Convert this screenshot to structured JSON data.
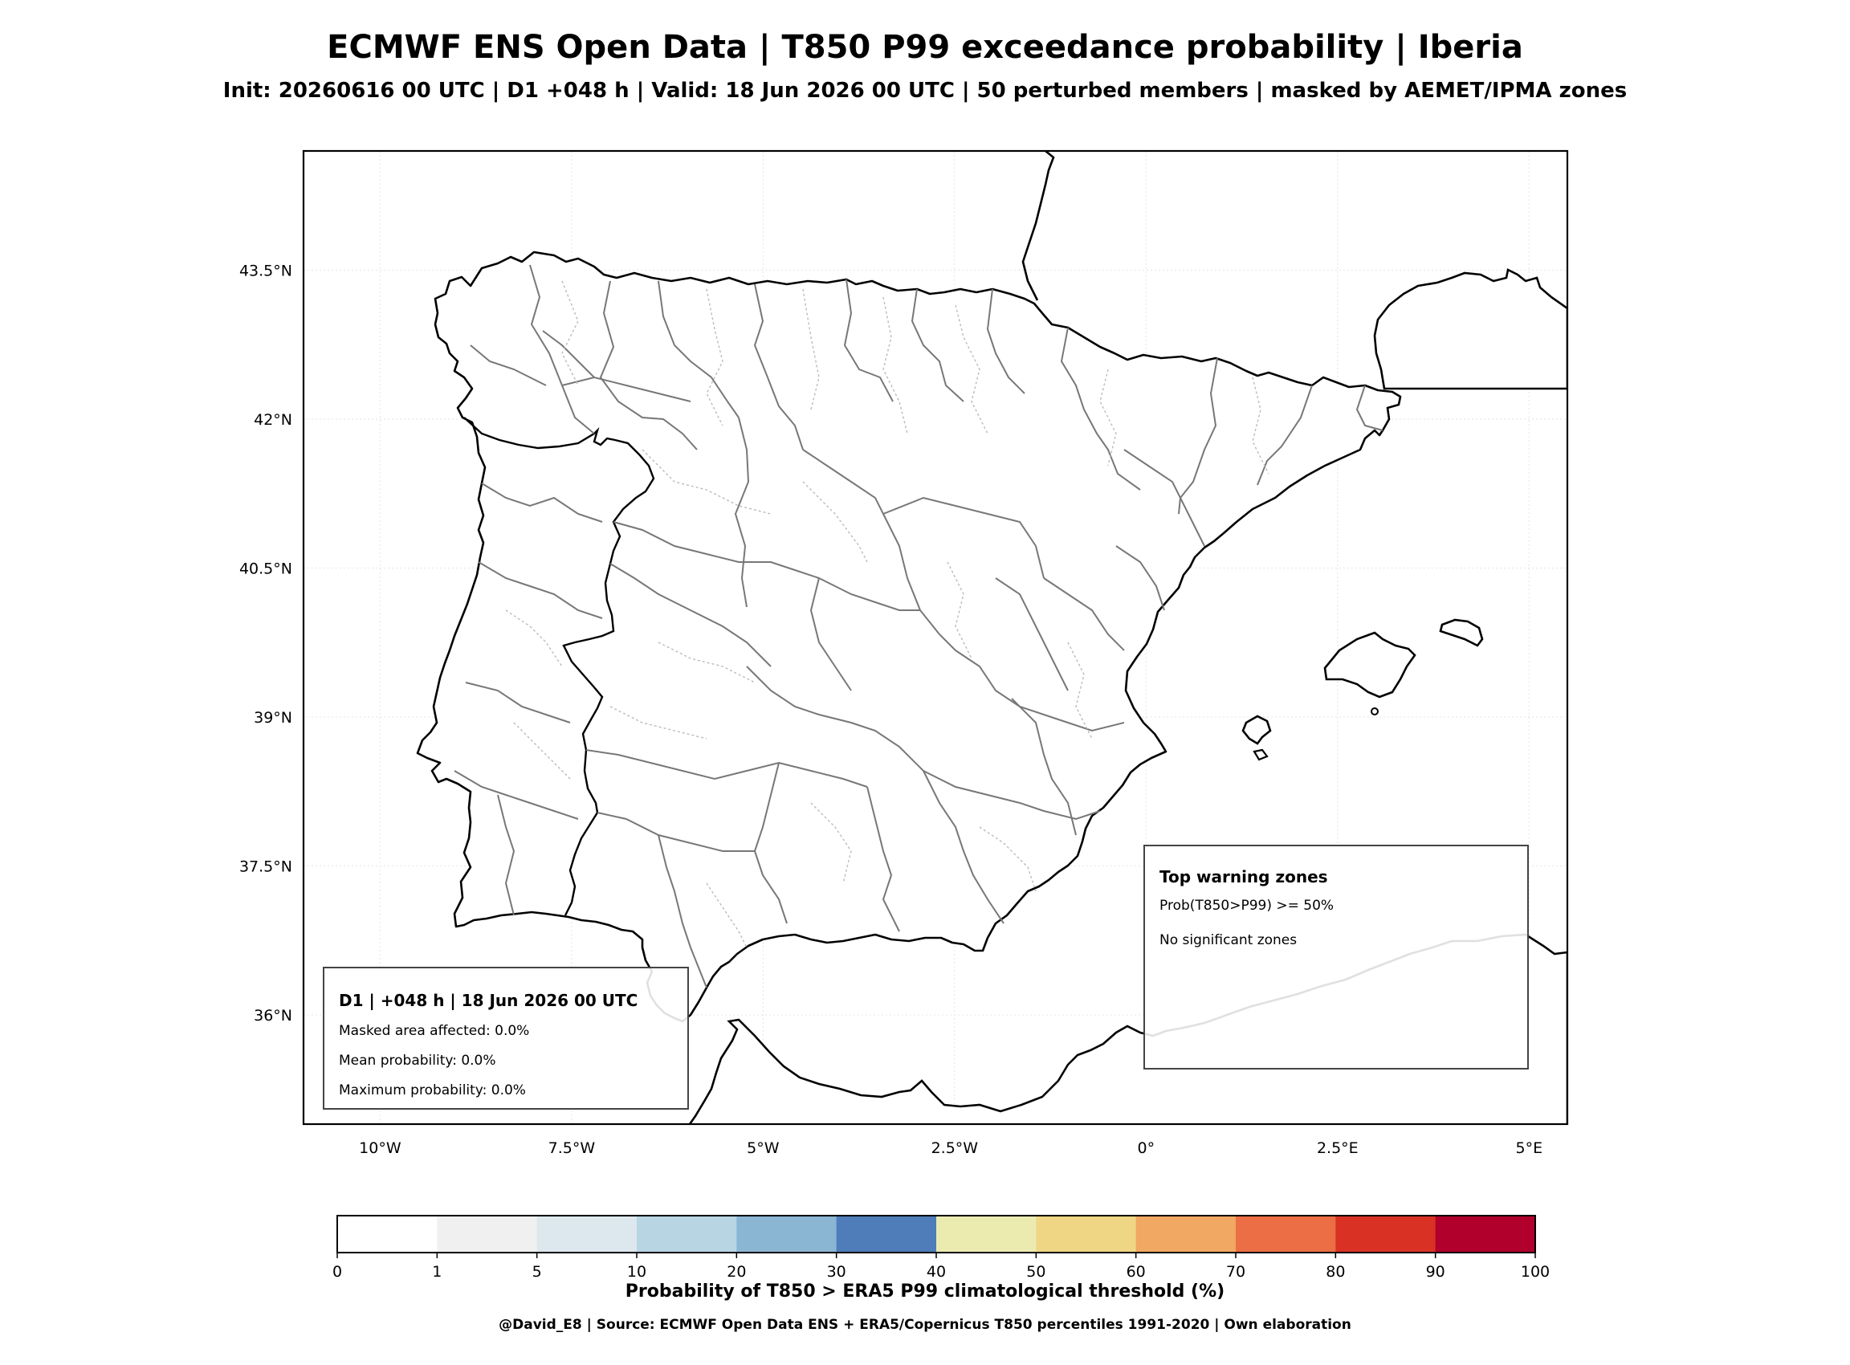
{
  "header": {
    "title": "ECMWF ENS Open Data | T850 P99 exceedance probability | Iberia",
    "subtitle": "Init: 20260616 00 UTC | D1 +048 h | Valid: 18 Jun 2026 00 UTC | 50 perturbed members | masked by AEMET/IPMA zones"
  },
  "map": {
    "extent": {
      "lon_min": -11.0,
      "lon_max": 5.5,
      "lat_min": 34.9,
      "lat_max": 44.7
    },
    "lat_ticks": [
      {
        "value": 43.5,
        "label": "43.5°N"
      },
      {
        "value": 42.0,
        "label": "42°N"
      },
      {
        "value": 40.5,
        "label": "40.5°N"
      },
      {
        "value": 39.0,
        "label": "39°N"
      },
      {
        "value": 37.5,
        "label": "37.5°N"
      },
      {
        "value": 36.0,
        "label": "36°N"
      }
    ],
    "lon_ticks": [
      {
        "value": -10.0,
        "label": "10°W"
      },
      {
        "value": -7.5,
        "label": "7.5°W"
      },
      {
        "value": -5.0,
        "label": "5°W"
      },
      {
        "value": -2.5,
        "label": "2.5°W"
      },
      {
        "value": 0.0,
        "label": "0°"
      },
      {
        "value": 2.5,
        "label": "2.5°E"
      },
      {
        "value": 5.0,
        "label": "5°E"
      }
    ],
    "gridlines": true
  },
  "stats_box": {
    "heading": "D1 | +048 h | 18 Jun 2026 00 UTC",
    "masked_area": "Masked area affected: 0.0%",
    "mean_prob": "Mean probability: 0.0%",
    "max_prob": "Maximum probability: 0.0%"
  },
  "zones_box": {
    "heading": "Top warning zones",
    "criterion": "Prob(T850>P99) >= 50%",
    "result": "No significant zones"
  },
  "colorbar": {
    "label": "Probability of T850 > ERA5 P99 climatological threshold (%)",
    "ticks": [
      "0",
      "1",
      "5",
      "10",
      "20",
      "30",
      "40",
      "50",
      "60",
      "70",
      "80",
      "90",
      "100"
    ],
    "colors": [
      "#ffffff",
      "#f0f0f0",
      "#dce8ee",
      "#b8d5e4",
      "#8ab6d4",
      "#4e7dba",
      "#ebebb0",
      "#efd684",
      "#f0a862",
      "#eb6e45",
      "#d93225",
      "#b0002b"
    ]
  },
  "footer": "@David_E8 | Source: ECMWF Open Data ENS + ERA5/Copernicus T850 percentiles 1991-2020 | Own elaboration"
}
